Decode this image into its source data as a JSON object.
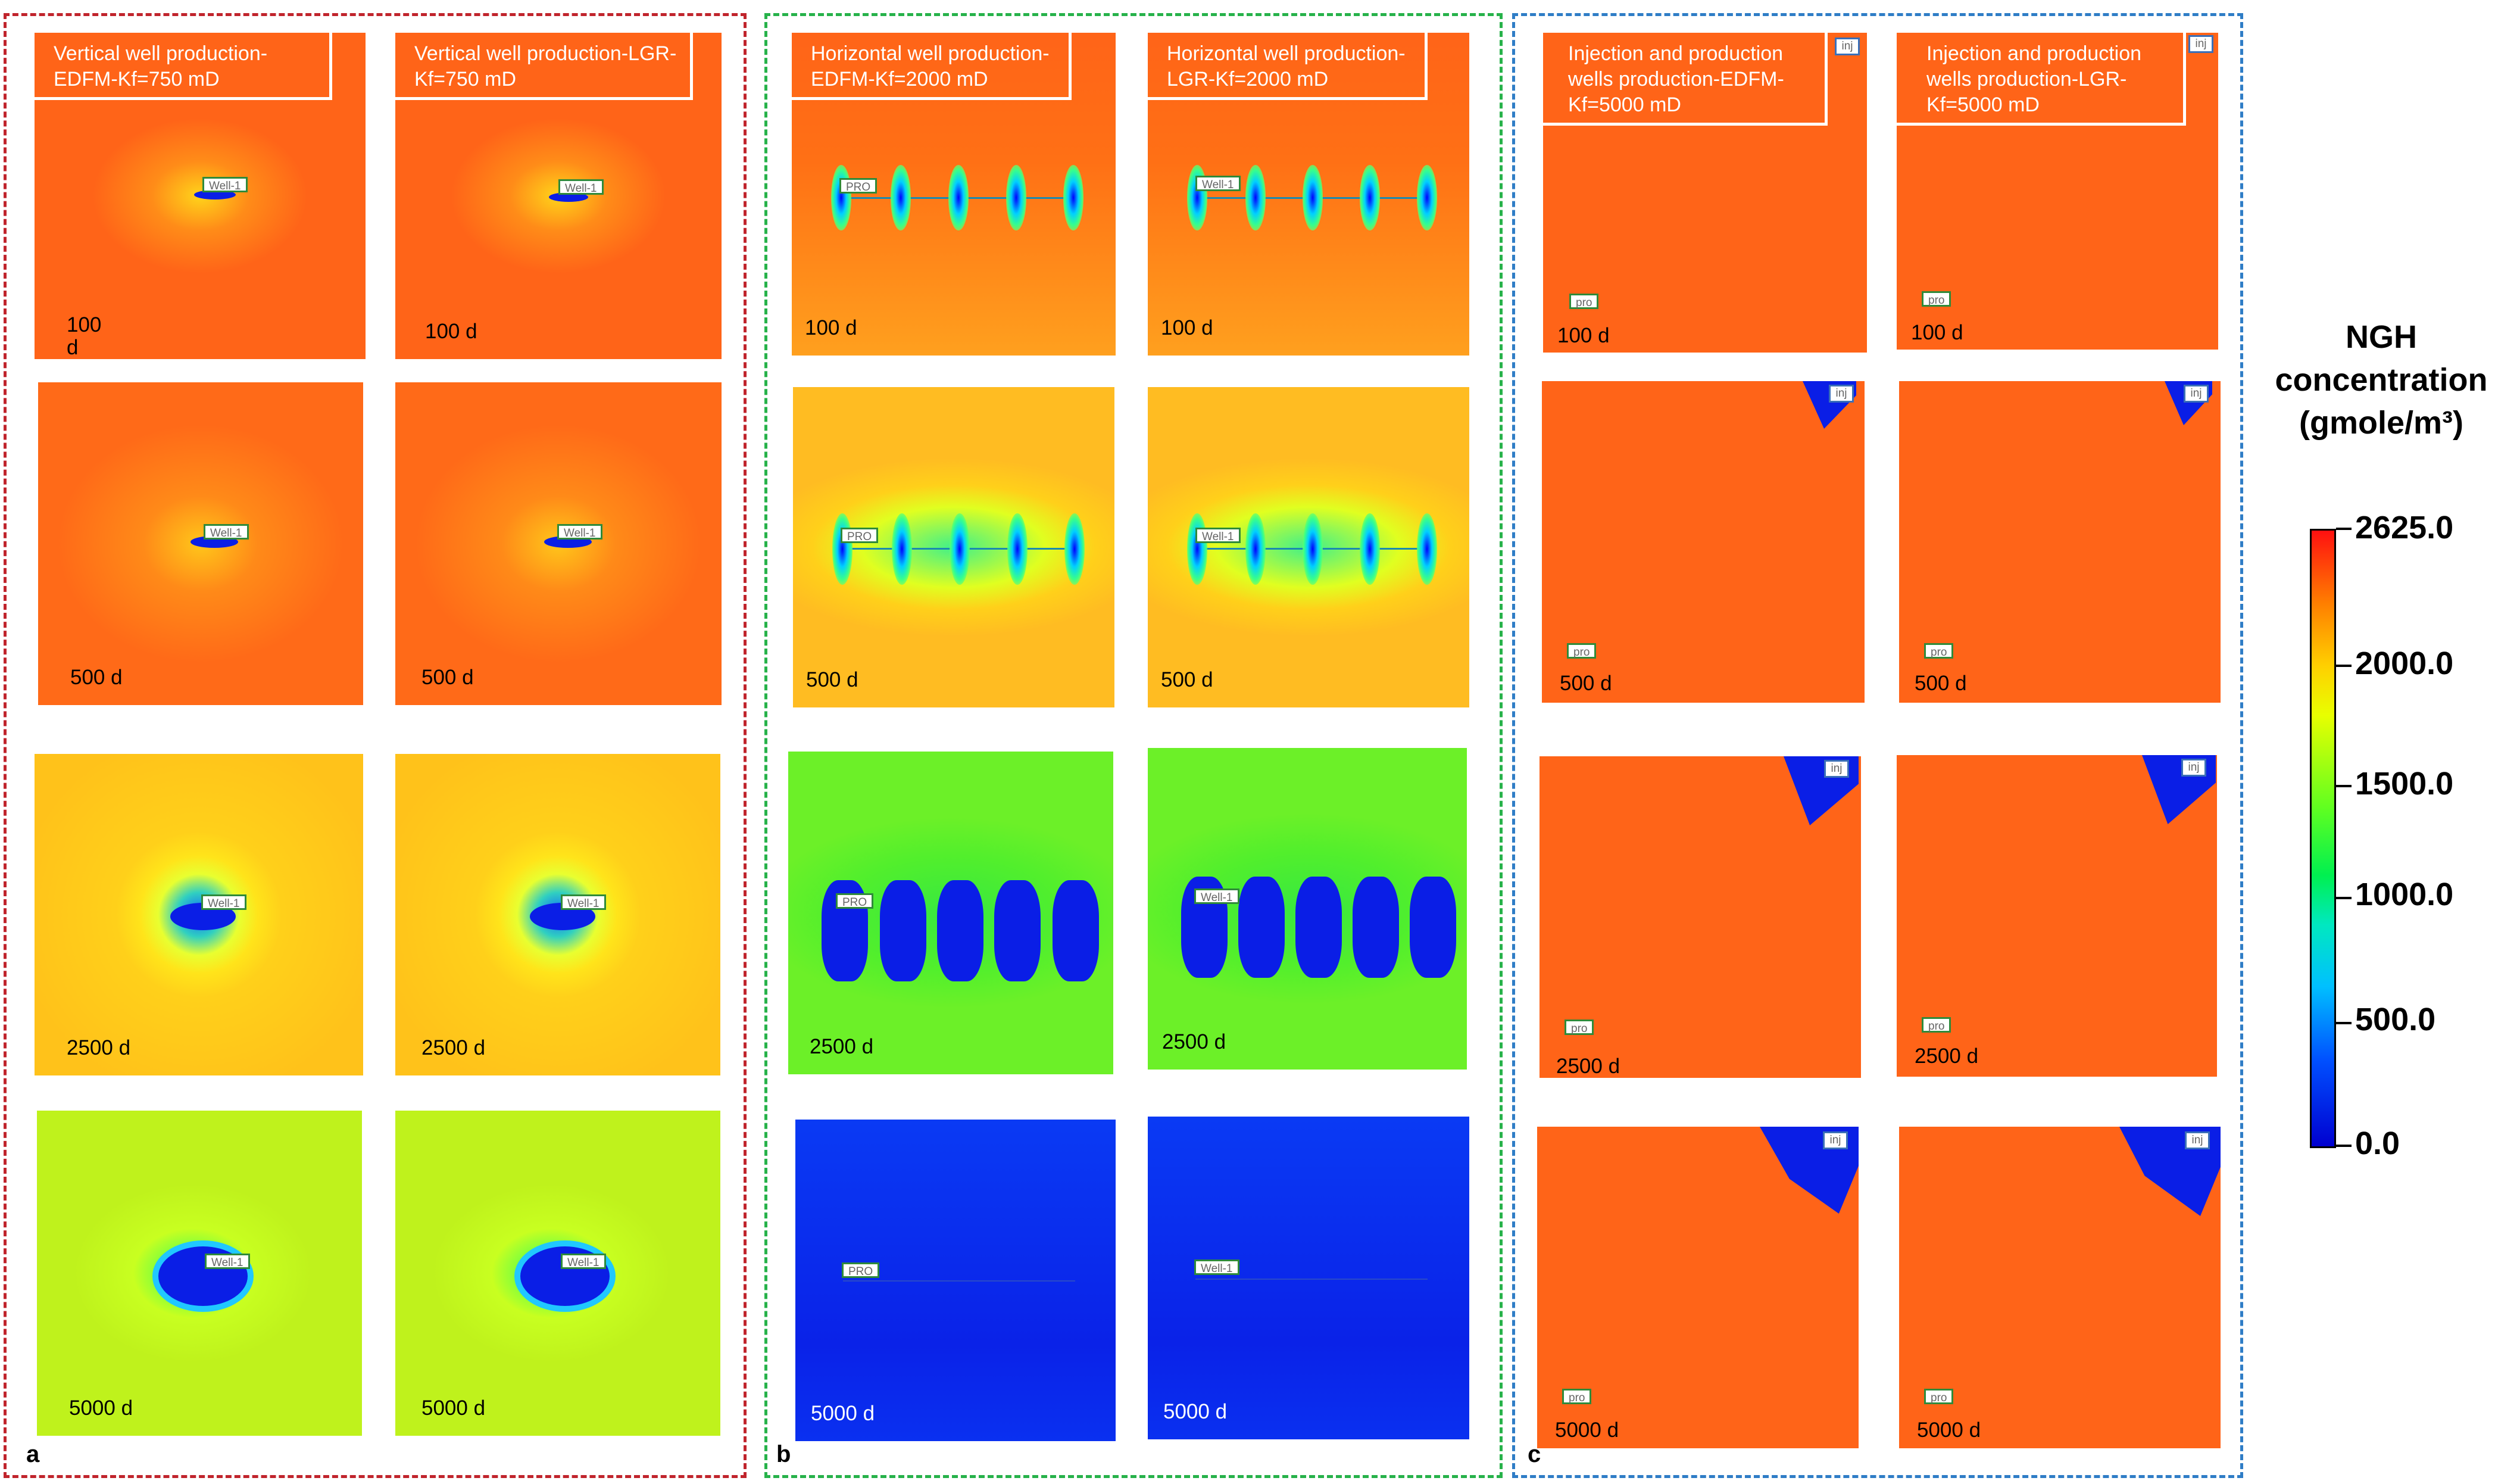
{
  "colorbar": {
    "title": [
      "NGH",
      "concentration",
      "(gmole/m³)"
    ],
    "ticks": [
      "2625.0",
      "2000.0",
      "1500.0",
      "1000.0",
      "500.0",
      "0.0"
    ]
  },
  "groups": [
    {
      "label": "a",
      "border_color": "#c0242c",
      "columns": [
        {
          "title": "Vertical  well production-EDFM-Kf=750  mD"
        },
        {
          "title": "Vertical  well production-LGR-Kf=750  mD"
        }
      ],
      "times": [
        "100 d",
        "500 d",
        "2500 d",
        "5000 d"
      ],
      "wrapped_times": [
        "100 d",
        "",
        "",
        ""
      ],
      "well_label": "Well-1",
      "field_colors": [
        "#ff6418",
        "#ff6a18",
        "#ffc21a",
        "#bff21c"
      ]
    },
    {
      "label": "b",
      "border_color": "#27b24a",
      "columns": [
        {
          "title": "Horizontal well production-EDFM-Kf=2000 mD",
          "well_label": "PRO"
        },
        {
          "title": "Horizontal well production-LGR-Kf=2000 mD",
          "well_label": "Well-1"
        }
      ],
      "times": [
        "100 d",
        "500 d",
        "2500 d",
        "5000 d"
      ],
      "field_colors": [
        "#ff7015",
        "#ffbc22",
        "#52ef2c",
        "#0a2ef0"
      ]
    },
    {
      "label": "c",
      "border_color": "#2f7dc6",
      "columns": [
        {
          "title": "Injection and production wells production-EDFM-Kf=5000  mD"
        },
        {
          "title": "Injection and production wells production-LGR-Kf=5000  mD"
        }
      ],
      "times": [
        "100 d",
        "500 d",
        "2500 d",
        "5000 d"
      ],
      "wrapped_times": [
        "",
        "",
        "2500 d",
        ""
      ],
      "injector_label": "inj",
      "producer_label": "pro",
      "field_colors": [
        "#ff6418",
        "#ff6418",
        "#ff6418",
        "#ff6418"
      ]
    }
  ]
}
